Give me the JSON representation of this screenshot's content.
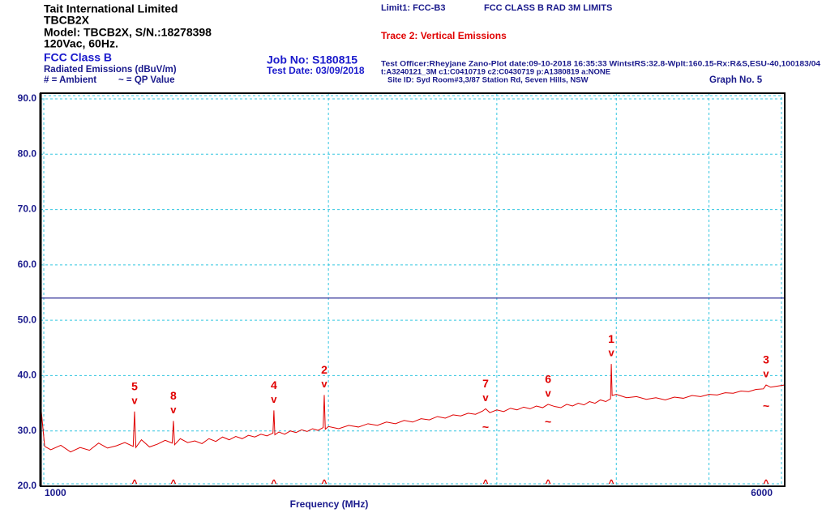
{
  "header": {
    "company": "Tait International Limited",
    "product": "TBCB2X",
    "model": "Model: TBCB2X, S/N.:18278398",
    "power": "120Vac, 60Hz.",
    "standard": "FCC Class B",
    "measurement": "Radiated Emissions (dBuV/m)",
    "legend_ambient": "# = Ambient",
    "legend_qp": "~ = QP Value",
    "job": "Job No: S180815",
    "test_date": "Test Date: 03/09/2018",
    "officer_line": "Test Officer:Rheyjane Zano-Plot date:09-10-2018 16:35:33   WintstRS:32.8-Wplt:160.15-Rx:R&S,ESU-40,100183/04",
    "transducer_line": "t:A3240121_3M c1:C0410719  c2:C0430719 p:A1380819 a:NONE",
    "site": "Site ID: Syd Room#3,3/87 Station Rd, Seven Hills, NSW",
    "graph_no": "Graph No. 5"
  },
  "chart_data": {
    "type": "line",
    "xscale": "log",
    "x_label": "Frequency (MHz)",
    "xlim": [
      1000,
      6000
    ],
    "xticks": [
      1000,
      6000
    ],
    "x_gridlines": [
      2000,
      3000,
      4000,
      5000
    ],
    "ylim": [
      20,
      90
    ],
    "yticks": [
      {
        "value": 20,
        "label": "20.0"
      },
      {
        "value": 30,
        "label": "30.0"
      },
      {
        "value": 40,
        "label": "40.0"
      },
      {
        "value": 50,
        "label": "50.0"
      },
      {
        "value": 60,
        "label": "60.0"
      },
      {
        "value": 70,
        "label": "70.0"
      },
      {
        "value": 80,
        "label": "80.0"
      },
      {
        "value": 90,
        "label": "90.0"
      }
    ],
    "grid": true,
    "limit": {
      "name": "Limit1: FCC-B3",
      "description": "FCC CLASS B RAD 3M LIMITS",
      "value": 54,
      "color": "#1a1a8c"
    },
    "x": [
      1000,
      1010,
      1025,
      1050,
      1075,
      1100,
      1125,
      1150,
      1175,
      1200,
      1225,
      1250,
      1254,
      1258,
      1275,
      1300,
      1325,
      1350,
      1373,
      1377,
      1381,
      1400,
      1425,
      1450,
      1475,
      1500,
      1525,
      1550,
      1575,
      1600,
      1625,
      1650,
      1675,
      1700,
      1725,
      1750,
      1754,
      1758,
      1775,
      1800,
      1825,
      1850,
      1875,
      1900,
      1925,
      1950,
      1975,
      1980,
      1985,
      2000,
      2050,
      2100,
      2150,
      2200,
      2250,
      2300,
      2350,
      2400,
      2450,
      2500,
      2550,
      2600,
      2650,
      2700,
      2750,
      2800,
      2850,
      2900,
      2920,
      2950,
      3000,
      3050,
      3100,
      3150,
      3200,
      3250,
      3300,
      3350,
      3394,
      3450,
      3500,
      3550,
      3600,
      3650,
      3700,
      3750,
      3800,
      3850,
      3900,
      3945,
      3952,
      3960,
      4000,
      4100,
      4200,
      4300,
      4400,
      4500,
      4600,
      4700,
      4800,
      4900,
      5000,
      5100,
      5200,
      5300,
      5400,
      5500,
      5600,
      5700,
      5737,
      5800,
      5900,
      6000
    ],
    "series": [
      {
        "name": "Trace 2: Vertical Emissions",
        "color": "#e00000",
        "values": [
          35.0,
          27.2,
          26.6,
          27.4,
          26.2,
          27.0,
          26.5,
          27.8,
          26.9,
          27.3,
          27.9,
          27.2,
          33.5,
          27.0,
          28.4,
          27.1,
          27.6,
          28.3,
          27.8,
          31.8,
          27.5,
          28.6,
          27.9,
          28.2,
          27.7,
          28.6,
          28.1,
          28.9,
          28.4,
          29.0,
          28.6,
          29.2,
          28.9,
          29.4,
          29.1,
          29.6,
          33.7,
          29.3,
          29.8,
          29.4,
          30.0,
          29.7,
          30.2,
          29.9,
          30.4,
          30.1,
          30.6,
          36.5,
          30.3,
          30.8,
          30.4,
          31.0,
          30.7,
          31.3,
          31.0,
          31.6,
          31.3,
          31.9,
          31.6,
          32.2,
          32.0,
          32.6,
          32.3,
          32.9,
          32.7,
          33.2,
          33.0,
          33.6,
          34.0,
          33.3,
          33.8,
          33.5,
          34.1,
          33.8,
          34.3,
          34.0,
          34.5,
          34.2,
          34.8,
          34.4,
          34.2,
          34.8,
          34.5,
          35.0,
          34.7,
          35.3,
          35.0,
          35.6,
          35.3,
          35.8,
          42.1,
          36.4,
          36.6,
          36.0,
          36.2,
          35.7,
          36.0,
          35.6,
          36.1,
          35.9,
          36.4,
          36.2,
          36.6,
          36.5,
          36.9,
          36.8,
          37.2,
          37.1,
          37.5,
          37.6,
          38.3,
          37.9,
          38.1,
          38.3
        ]
      }
    ],
    "peak_symbol": "v",
    "qp_symbol": "~",
    "bottom_symbol": "^",
    "marker_color": "#e00000",
    "markers": [
      {
        "label": "5",
        "freq": 1254,
        "peak": 33.5
      },
      {
        "label": "8",
        "freq": 1377,
        "peak": 31.8
      },
      {
        "label": "4",
        "freq": 1754,
        "peak": 33.7
      },
      {
        "label": "2",
        "freq": 1980,
        "peak": 36.5
      },
      {
        "label": "7",
        "freq": 2920,
        "peak": 34.0,
        "qp": 30.9
      },
      {
        "label": "6",
        "freq": 3394,
        "peak": 34.8,
        "qp": 31.8
      },
      {
        "label": "1",
        "freq": 3952,
        "peak": 42.1
      },
      {
        "label": "3",
        "freq": 5737,
        "peak": 38.3,
        "qp": 34.7
      }
    ]
  }
}
